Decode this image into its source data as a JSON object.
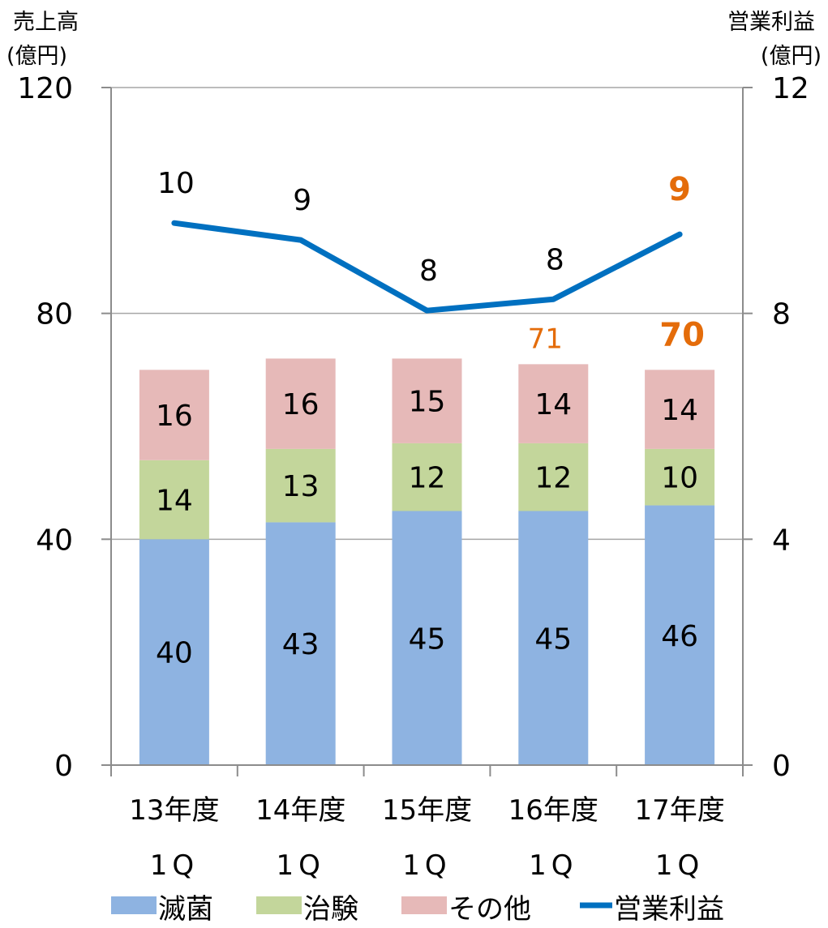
{
  "chart_data": {
    "type": "bar",
    "stacked": true,
    "categories": [
      "13年度\n1Q",
      "14年度\n1Q",
      "15年度\n1Q",
      "16年度\n1Q",
      "17年度\n1Q"
    ],
    "category_lines": [
      [
        "13年度",
        "1Q"
      ],
      [
        "14年度",
        "1Q"
      ],
      [
        "15年度",
        "1Q"
      ],
      [
        "16年度",
        "1Q"
      ],
      [
        "17年度",
        "1Q"
      ]
    ],
    "series": [
      {
        "name": "滅菌",
        "axis": "left",
        "values": [
          40,
          43,
          45,
          45,
          46
        ],
        "labels": [
          "40",
          "43",
          "45",
          "45",
          "46"
        ],
        "color": "#8EB3E1"
      },
      {
        "name": "治験",
        "axis": "left",
        "values": [
          14,
          13,
          12,
          12,
          10
        ],
        "labels": [
          "14",
          "13",
          "12",
          "12",
          "10"
        ],
        "color": "#C3D69B"
      },
      {
        "name": "その他",
        "axis": "left",
        "values": [
          16,
          16,
          15,
          14,
          14
        ],
        "labels": [
          "16",
          "16",
          "15",
          "14",
          "14"
        ],
        "color": "#E6B9B8"
      }
    ],
    "totals": {
      "labels": [
        "",
        "",
        "",
        "71",
        "70"
      ],
      "color": "#E46C0A"
    },
    "line": {
      "name": "営業利益",
      "type": "line",
      "axis": "right",
      "values": [
        9.6,
        9.3,
        8.05,
        8.25,
        9.4
      ],
      "labels": [
        "10",
        "9",
        "8",
        "8",
        "9"
      ],
      "color": "#0070C0",
      "highlight_color": "#E46C0A"
    },
    "y_left": {
      "label_lines": [
        "売上高",
        "(億円)"
      ],
      "ticks": [
        "0",
        "40",
        "80",
        "120"
      ],
      "lim": [
        0,
        120
      ]
    },
    "y_right": {
      "label_lines": [
        "営業利益",
        "(億円)"
      ],
      "ticks": [
        "0",
        "4",
        "8",
        "12"
      ],
      "lim": [
        0,
        12
      ]
    },
    "grid": true,
    "legend": {
      "position": "bottom",
      "items": [
        "滅菌",
        "治験",
        "その他",
        "営業利益"
      ]
    }
  }
}
